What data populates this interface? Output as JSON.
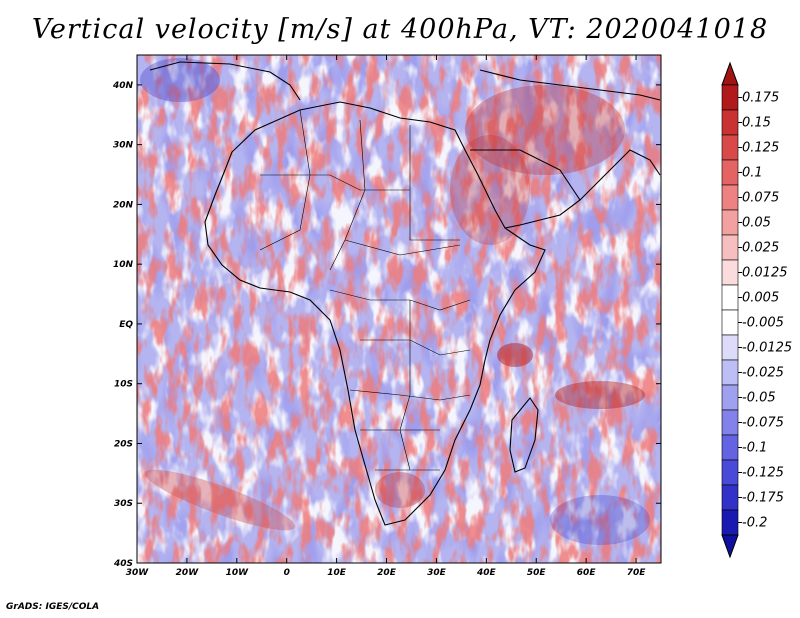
{
  "title": "Vertical velocity [m/s] at 400hPa, VT: 2020041018",
  "credit": "GrADS: IGES/COLA",
  "map": {
    "lon_range": [
      -30,
      75
    ],
    "lat_range": [
      -40,
      45
    ],
    "lat_ticks": [
      "40N",
      "30N",
      "20N",
      "10N",
      "EQ",
      "10S",
      "20S",
      "30S",
      "40S"
    ],
    "lat_values": [
      40,
      30,
      20,
      10,
      0,
      -10,
      -20,
      -30,
      -40
    ],
    "lon_ticks": [
      "30W",
      "20W",
      "10W",
      "0",
      "10E",
      "20E",
      "30E",
      "40E",
      "50E",
      "60E",
      "70E"
    ],
    "lon_values": [
      -30,
      -20,
      -10,
      0,
      10,
      20,
      30,
      40,
      50,
      60,
      70
    ]
  },
  "colorbar": {
    "labels": [
      "0.175",
      "0.15",
      "0.125",
      "0.1",
      "0.075",
      "0.05",
      "0.025",
      "0.0125",
      "0.005",
      "-0.005",
      "-0.0125",
      "-0.025",
      "-0.05",
      "-0.075",
      "-0.1",
      "-0.125",
      "-0.175",
      "-0.2"
    ],
    "colors": [
      "#b01a1a",
      "#c83232",
      "#d84a4a",
      "#e46464",
      "#ec8282",
      "#f2a0a0",
      "#f6bebe",
      "#fadcdc",
      "#ffffff",
      "#ffffff",
      "#dcdcfa",
      "#bebef6",
      "#a0a0f0",
      "#8282ea",
      "#6464e2",
      "#4a4ad8",
      "#3232c8",
      "#1a1ab0"
    ]
  },
  "colors": {
    "positive": "#d23c3c",
    "negative": "#4646d2",
    "background_field": "#b4b4f0",
    "outline": "#000000"
  }
}
